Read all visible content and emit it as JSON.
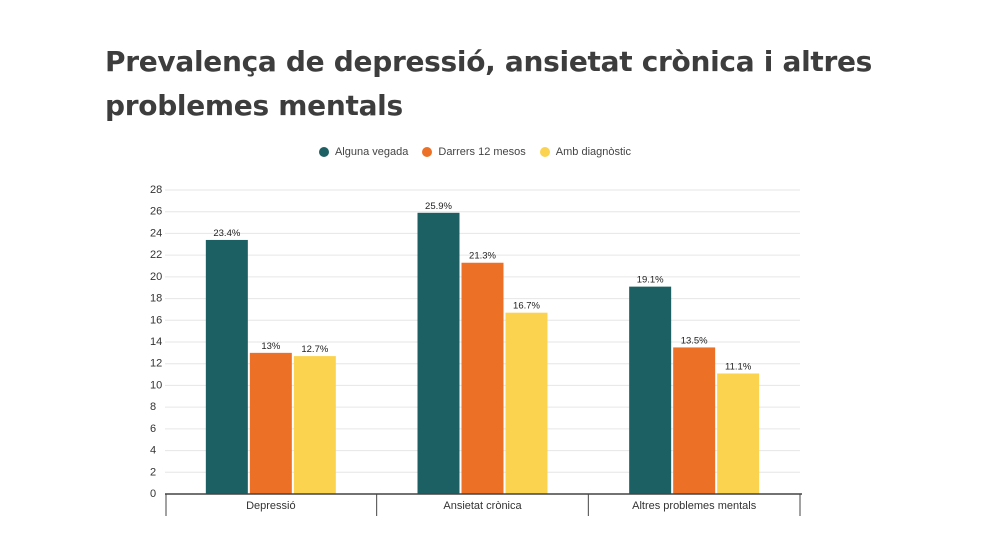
{
  "title": "Prevalença de depressió, ansietat crònica i altres problemes mentals",
  "legend": [
    {
      "label": "Alguna vegada",
      "color": "#1d6063"
    },
    {
      "label": "Darrers 12 mesos",
      "color": "#ec7127"
    },
    {
      "label": "Amb diagnòstic",
      "color": "#fcd34f"
    }
  ],
  "chart_data": {
    "type": "bar",
    "categories": [
      "Depressió",
      "Ansietat crònica",
      "Altres problemes mentals"
    ],
    "series": [
      {
        "name": "Alguna vegada",
        "values": [
          23.4,
          25.9,
          19.1
        ],
        "labels": [
          "23.4%",
          "25.9%",
          "19.1%"
        ],
        "color": "#1d6063"
      },
      {
        "name": "Darrers 12 mesos",
        "values": [
          13,
          21.3,
          13.5
        ],
        "labels": [
          "13%",
          "21.3%",
          "13.5%"
        ],
        "color": "#ec7127"
      },
      {
        "name": "Amb diagnòstic",
        "values": [
          12.7,
          16.7,
          11.1
        ],
        "labels": [
          "12.7%",
          "16.7%",
          "11.1%"
        ],
        "color": "#fcd34f"
      }
    ],
    "ylim": [
      0,
      28
    ],
    "yticks": [
      0,
      2,
      4,
      6,
      8,
      10,
      12,
      14,
      16,
      18,
      20,
      22,
      24,
      26,
      28
    ],
    "grid": true,
    "legend_position": "top-center"
  }
}
